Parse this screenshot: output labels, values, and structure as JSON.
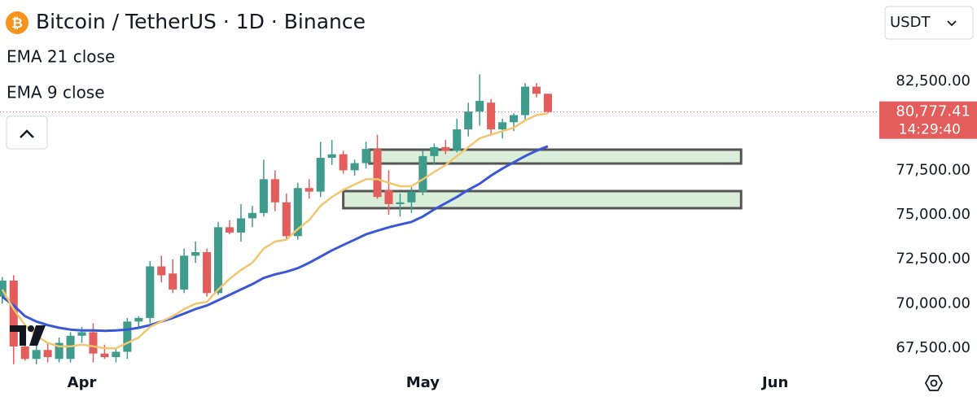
{
  "chart_data": {
    "type": "candlestick",
    "title": "Bitcoin / TetherUS · 1D · Binance",
    "currency": "USDT",
    "x": [
      -7,
      -6,
      -5,
      -4,
      -3,
      -2,
      -1,
      0,
      1,
      2,
      3,
      4,
      5,
      6,
      7,
      8,
      9,
      10,
      11,
      12,
      13,
      14,
      15,
      16,
      17,
      18,
      19,
      20,
      21,
      22,
      23,
      24,
      25,
      26,
      27,
      28,
      29,
      30,
      31,
      32,
      33,
      34,
      35,
      36,
      37,
      38,
      39,
      40,
      41
    ],
    "open": [
      70400,
      71300,
      67600,
      66900,
      67400,
      66900,
      66900,
      68200,
      68400,
      67200,
      67000,
      67300,
      69000,
      69200,
      72100,
      71700,
      70800,
      72700,
      72900,
      70600,
      74300,
      74000,
      74800,
      75100,
      77000,
      75700,
      73800,
      76500,
      76300,
      78200,
      78400,
      77500,
      77900,
      78700,
      76400,
      75600,
      75700,
      76300,
      78300,
      78800,
      78600,
      79800,
      80800,
      81300,
      79800,
      80200,
      80600,
      82200,
      81800
    ],
    "high": [
      71500,
      71600,
      68000,
      67900,
      67800,
      68100,
      68400,
      68700,
      68900,
      67700,
      67500,
      69200,
      69300,
      72400,
      72700,
      72500,
      73100,
      73500,
      73100,
      74600,
      74700,
      75600,
      75500,
      78100,
      77500,
      76200,
      76800,
      77000,
      79100,
      79200,
      78600,
      78100,
      79100,
      79500,
      77500,
      76200,
      76600,
      78600,
      79000,
      79200,
      80400,
      81300,
      82900,
      81500,
      80400,
      80700,
      82400,
      82400,
      81800
    ],
    "low": [
      70000,
      66600,
      66800,
      66600,
      66700,
      66700,
      66700,
      67800,
      66700,
      66900,
      66700,
      66900,
      68600,
      68900,
      71200,
      70600,
      70600,
      72300,
      70400,
      70500,
      73900,
      73500,
      74300,
      74900,
      75200,
      73600,
      73600,
      75900,
      76000,
      77800,
      77300,
      77200,
      77600,
      75900,
      75000,
      74900,
      75100,
      76100,
      77800,
      78400,
      78500,
      79400,
      80000,
      79500,
      79300,
      79700,
      80300,
      81600,
      80700
    ],
    "close": [
      71300,
      67600,
      66900,
      67400,
      67000,
      67800,
      68200,
      68400,
      67200,
      67000,
      67300,
      69000,
      69200,
      72100,
      71600,
      70800,
      72700,
      72900,
      70600,
      74300,
      74000,
      74800,
      75100,
      77000,
      75700,
      73800,
      76500,
      76300,
      78200,
      78400,
      77500,
      77900,
      78700,
      76000,
      75600,
      75700,
      76300,
      78300,
      78800,
      78600,
      79800,
      80800,
      81400,
      79800,
      80200,
      80600,
      82200,
      81800,
      80777.41
    ],
    "up_color": "#3f9b8c",
    "down_color": "#e35d5d",
    "series": [
      {
        "name": "EMA 21 close",
        "color": "#3a57d6",
        "values": [
          70400,
          69900,
          69300,
          69000,
          68800,
          68650,
          68550,
          68500,
          68500,
          68480,
          68500,
          68550,
          68650,
          68800,
          69000,
          69200,
          69450,
          69700,
          69900,
          70200,
          70500,
          70800,
          71100,
          71450,
          71650,
          71800,
          72000,
          72300,
          72650,
          73000,
          73300,
          73600,
          73900,
          74100,
          74300,
          74450,
          74600,
          74900,
          75300,
          75650,
          76000,
          76400,
          76750,
          77200,
          77600,
          77950,
          78300,
          78600,
          78850
        ]
      },
      {
        "name": "EMA 9 close",
        "color": "#f2c66e",
        "values": [
          70800,
          69700,
          68800,
          68200,
          67800,
          67600,
          67600,
          67700,
          67600,
          67500,
          67500,
          67800,
          68100,
          68700,
          69000,
          69300,
          69700,
          70000,
          70100,
          70800,
          71400,
          71900,
          72300,
          73100,
          73500,
          73600,
          74200,
          74700,
          75500,
          76000,
          76400,
          76700,
          77000,
          77000,
          76800,
          76600,
          76600,
          77000,
          77400,
          77800,
          78300,
          78800,
          79300,
          79500,
          79700,
          79900,
          80300,
          80600,
          80700
        ]
      }
    ],
    "zones": [
      {
        "x": [
          25.3,
          58
        ],
        "y": [
          77880,
          78660
        ]
      },
      {
        "x": [
          23,
          58
        ],
        "y": [
          75370,
          76330
        ]
      }
    ],
    "current_price": {
      "value": 80777.41,
      "label": "80,777.41"
    },
    "countdown": "14:29:40",
    "xlim": [
      -7.2,
      69.8
    ],
    "xticks": [
      {
        "value": 0,
        "label": "Apr"
      },
      {
        "value": 30,
        "label": "May"
      },
      {
        "value": 61,
        "label": "Jun"
      }
    ],
    "ylim": [
      66500,
      87070
    ],
    "yticks": [
      {
        "value": 67500,
        "label": "67,500.00"
      },
      {
        "value": 70000,
        "label": "70,000.00"
      },
      {
        "value": 72500,
        "label": "72,500.00"
      },
      {
        "value": 75000,
        "label": "75,000.00"
      },
      {
        "value": 77500,
        "label": "77,500.00"
      },
      {
        "value": 80000,
        "label": "80,000.00"
      },
      {
        "value": 82500,
        "label": "82,500.00"
      }
    ],
    "grid": false
  }
}
